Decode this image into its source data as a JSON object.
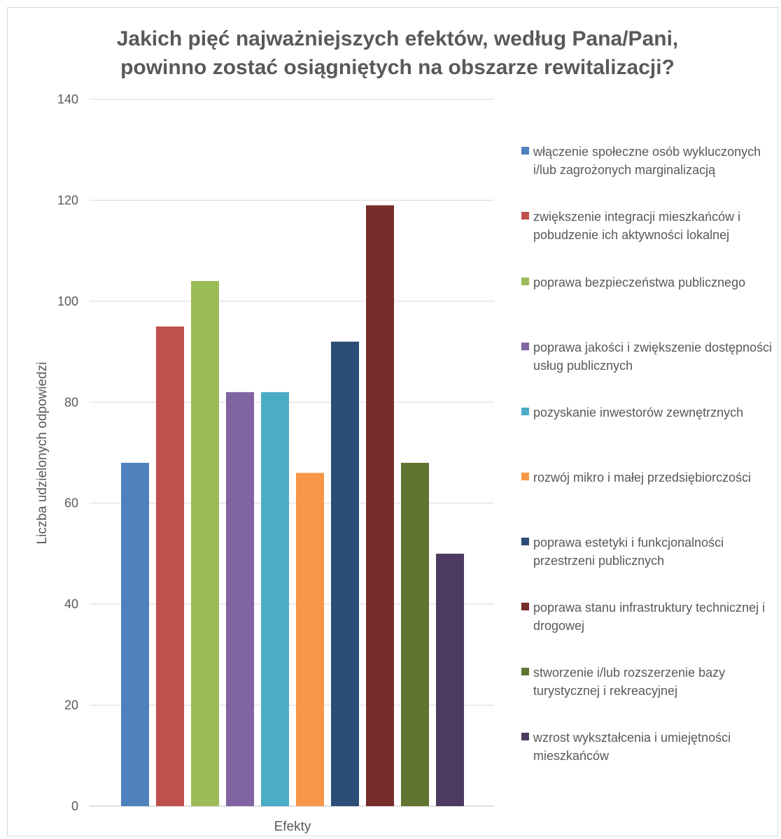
{
  "chart_data": {
    "type": "bar",
    "title_lines": [
      "Jakich pięć najważniejszych efektów, według Pana/Pani,",
      "powinno zostać osiągniętych na obszarze rewitalizacji?"
    ],
    "xlabel": "Efekty",
    "ylabel": "Liczba udzielonych odpowiedzi",
    "ylim": [
      0,
      140
    ],
    "yticks": [
      0,
      20,
      40,
      60,
      80,
      100,
      120,
      140
    ],
    "grid": true,
    "legend_position": "right",
    "series": [
      {
        "name": "włączenie społeczne osób wykluczonych i/lub zagrożonych marginalizacją",
        "value": 68,
        "color": "#4f81bd"
      },
      {
        "name": "zwiększenie integracji mieszkańców i pobudzenie ich aktywności lokalnej",
        "value": 95,
        "color": "#c0504d"
      },
      {
        "name": "poprawa bezpieczeństwa publicznego",
        "value": 104,
        "color": "#9bbb59"
      },
      {
        "name": "poprawa jakości i zwiększenie dostępności usług publicznych",
        "value": 82,
        "color": "#8064a2"
      },
      {
        "name": "pozyskanie inwestorów zewnętrznych",
        "value": 82,
        "color": "#4bacc6"
      },
      {
        "name": "rozwój mikro i małej przedsiębiorczości",
        "value": 66,
        "color": "#f79646"
      },
      {
        "name": "poprawa estetyki i funkcjonalności przestrzeni publicznych",
        "value": 92,
        "color": "#2c4d75"
      },
      {
        "name": "poprawa stanu infrastruktury technicznej i drogowej",
        "value": 119,
        "color": "#772c2a"
      },
      {
        "name": "stworzenie i/lub rozszerzenie bazy turystycznej i rekreacyjnej",
        "value": 68,
        "color": "#5f7530"
      },
      {
        "name": "wzrost wykształcenia i umiejętności mieszkańców",
        "value": 50,
        "color": "#4d3b62"
      }
    ]
  }
}
